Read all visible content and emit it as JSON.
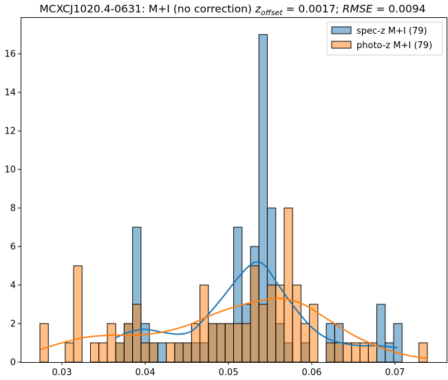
{
  "chart_data": {
    "type": "bar",
    "title": {
      "prefix": "MCXCJ1020.4-0631: M+I (no correction) ",
      "z_symbol": "z",
      "z_sub": "offset",
      "z_value": " = 0.0017; ",
      "rmse_symbol": "RMSE",
      "rmse_value": " = 0.0094"
    },
    "xlabel": "",
    "ylabel": "",
    "xlim": [
      0.02504,
      0.0762
    ],
    "ylim": [
      0,
      17.9
    ],
    "grid": false,
    "legend_position": "top-right",
    "x_ticks": [
      {
        "value": 0.03,
        "label": "0.03"
      },
      {
        "value": 0.04,
        "label": "0.04"
      },
      {
        "value": 0.05,
        "label": "0.05"
      },
      {
        "value": 0.06,
        "label": "0.06"
      },
      {
        "value": 0.07,
        "label": "0.07"
      }
    ],
    "y_ticks": [
      {
        "value": 0,
        "label": "0"
      },
      {
        "value": 2,
        "label": "2"
      },
      {
        "value": 4,
        "label": "4"
      },
      {
        "value": 6,
        "label": "6"
      },
      {
        "value": 8,
        "label": "8"
      },
      {
        "value": 10,
        "label": "10"
      },
      {
        "value": 12,
        "label": "12"
      },
      {
        "value": 14,
        "label": "14"
      },
      {
        "value": 16,
        "label": "16"
      }
    ],
    "bins": {
      "start": 0.027355,
      "end": 0.073884,
      "count": 46
    },
    "series": [
      {
        "name": "spec-z M+I (79)",
        "color": "#1f77b4",
        "fill": "rgba(31,119,180,0.5)",
        "counts": [
          0,
          0,
          0,
          0,
          0,
          0,
          0,
          0,
          0,
          1,
          2,
          7,
          2,
          1,
          1,
          0,
          1,
          1,
          1,
          1,
          2,
          2,
          2,
          7,
          3,
          6,
          17,
          8,
          2,
          1,
          0,
          1,
          0,
          0,
          2,
          2,
          0,
          0,
          0,
          0,
          3,
          1,
          2,
          0,
          0,
          0
        ],
        "kde": [
          [
            0.0364,
            1.25
          ],
          [
            0.038,
            1.55
          ],
          [
            0.04,
            1.7
          ],
          [
            0.042,
            1.55
          ],
          [
            0.044,
            1.45
          ],
          [
            0.0455,
            1.6
          ],
          [
            0.047,
            2.2
          ],
          [
            0.049,
            3.2
          ],
          [
            0.051,
            4.3
          ],
          [
            0.0525,
            5.0
          ],
          [
            0.0535,
            5.2
          ],
          [
            0.0545,
            4.95
          ],
          [
            0.056,
            4.0
          ],
          [
            0.058,
            2.8
          ],
          [
            0.06,
            1.8
          ],
          [
            0.062,
            1.2
          ],
          [
            0.064,
            0.95
          ],
          [
            0.066,
            0.85
          ],
          [
            0.068,
            0.85
          ],
          [
            0.0703,
            0.75
          ]
        ]
      },
      {
        "name": "photo-z M+I (79)",
        "color": "#ff7f0e",
        "fill": "rgba(255,127,14,0.5)",
        "counts": [
          2,
          0,
          0,
          1,
          5,
          0,
          1,
          1,
          2,
          1,
          2,
          3,
          1,
          1,
          0,
          1,
          1,
          1,
          2,
          4,
          2,
          2,
          2,
          2,
          2,
          5,
          3,
          4,
          4,
          8,
          4,
          2,
          3,
          0,
          1,
          1,
          1,
          1,
          1,
          1,
          0,
          0,
          0,
          0,
          0,
          1
        ],
        "kde": [
          [
            0.0274,
            0.65
          ],
          [
            0.03,
            1.0
          ],
          [
            0.033,
            1.3
          ],
          [
            0.036,
            1.4
          ],
          [
            0.039,
            1.4
          ],
          [
            0.042,
            1.55
          ],
          [
            0.045,
            1.9
          ],
          [
            0.048,
            2.45
          ],
          [
            0.051,
            2.9
          ],
          [
            0.054,
            3.2
          ],
          [
            0.0565,
            3.3
          ],
          [
            0.059,
            3.0
          ],
          [
            0.062,
            2.2
          ],
          [
            0.065,
            1.4
          ],
          [
            0.068,
            0.8
          ],
          [
            0.071,
            0.4
          ],
          [
            0.0739,
            0.18
          ]
        ]
      }
    ]
  }
}
